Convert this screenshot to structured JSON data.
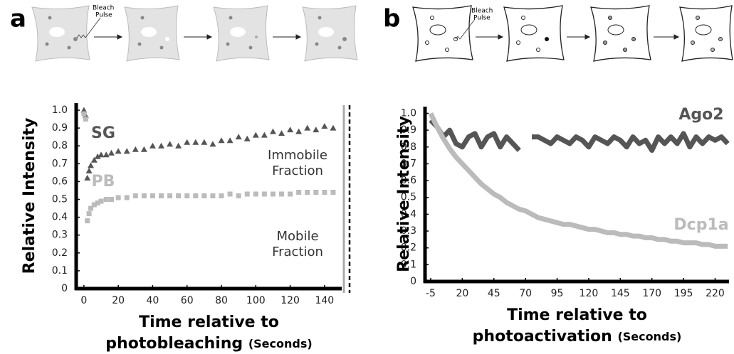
{
  "panel_labels": [
    "a",
    "b"
  ],
  "schematic_labels": [
    [
      "Bleach",
      "Pulse"
    ],
    [
      "Bleach",
      "Pulse"
    ]
  ],
  "chart_data": [
    {
      "type": "scatter",
      "ylabel": "Relative Intensity",
      "xlabel": [
        "Time relative to",
        "photobleaching"
      ],
      "xlabel_unit": "(Seconds)",
      "annotations": [
        [
          "Immobile",
          "Fraction"
        ],
        [
          "Mobile",
          "Fraction"
        ]
      ],
      "xlim": [
        -4.5,
        150
      ],
      "xticks": [
        0,
        20,
        40,
        60,
        80,
        100,
        120,
        140
      ],
      "ylim": [
        0,
        1.04
      ],
      "yticks": [
        0,
        0.1,
        0.2,
        0.3,
        0.4,
        0.5,
        0.6,
        0.7,
        0.8,
        0.9,
        {
          "value": 1,
          "label": "1.0"
        }
      ],
      "x": [
        0,
        1,
        2,
        3,
        4,
        6,
        8,
        10,
        13,
        16,
        20,
        25,
        30,
        35,
        40,
        45,
        50,
        55,
        60,
        65,
        70,
        75,
        80,
        85,
        90,
        95,
        100,
        105,
        110,
        115,
        120,
        125,
        130,
        135,
        140,
        145
      ],
      "series": [
        {
          "name": "SG",
          "color": "#555555",
          "marker": "triangle",
          "values": [
            1.0,
            0.97,
            0.62,
            0.66,
            0.69,
            0.72,
            0.74,
            0.75,
            0.75,
            0.76,
            0.77,
            0.77,
            0.78,
            0.78,
            0.8,
            0.8,
            0.81,
            0.8,
            0.82,
            0.82,
            0.82,
            0.81,
            0.83,
            0.83,
            0.85,
            0.84,
            0.86,
            0.86,
            0.88,
            0.87,
            0.89,
            0.88,
            0.9,
            0.89,
            0.91,
            0.9
          ]
        },
        {
          "name": "PB",
          "color": "#bbbbbb",
          "marker": "square",
          "values": [
            0.98,
            0.95,
            0.38,
            0.42,
            0.45,
            0.47,
            0.48,
            0.49,
            0.5,
            0.5,
            0.51,
            0.51,
            0.52,
            0.52,
            0.52,
            0.52,
            0.52,
            0.52,
            0.52,
            0.52,
            0.52,
            0.52,
            0.52,
            0.53,
            0.52,
            0.53,
            0.53,
            0.53,
            0.53,
            0.53,
            0.53,
            0.54,
            0.54,
            0.54,
            0.54,
            0.54
          ]
        }
      ]
    },
    {
      "type": "line",
      "ylabel": "Relative Intensity",
      "xlabel": [
        "Time relative to",
        "photoactivation"
      ],
      "xlabel_unit": "(Seconds)",
      "xlim": [
        -9.5,
        231
      ],
      "xticks": [
        -5,
        20,
        45,
        70,
        95,
        120,
        145,
        170,
        195,
        220
      ],
      "ylim": [
        0,
        1.04
      ],
      "yticks": [
        0,
        0.1,
        0.2,
        0.3,
        0.4,
        0.5,
        0.6,
        0.7,
        0.8,
        0.9,
        {
          "value": 1,
          "label": "1.0"
        }
      ],
      "x": [
        -5,
        0,
        5,
        10,
        15,
        20,
        25,
        30,
        35,
        40,
        45,
        50,
        55,
        60,
        65,
        70,
        75,
        80,
        85,
        90,
        95,
        100,
        105,
        110,
        115,
        120,
        125,
        130,
        135,
        140,
        145,
        150,
        155,
        160,
        165,
        170,
        175,
        180,
        185,
        190,
        195,
        200,
        205,
        210,
        215,
        220,
        225,
        230
      ],
      "series": [
        {
          "name": "Ago2",
          "color": "#555555",
          "values": [
            0.96,
            0.92,
            0.86,
            0.9,
            0.82,
            0.8,
            0.86,
            0.88,
            0.8,
            0.86,
            0.88,
            0.8,
            0.86,
            0.82,
            0.78,
            null,
            0.86,
            0.86,
            0.84,
            0.82,
            0.86,
            0.84,
            0.82,
            0.86,
            0.84,
            0.8,
            0.86,
            0.84,
            0.82,
            0.86,
            0.84,
            0.8,
            0.86,
            0.82,
            0.84,
            0.78,
            0.86,
            0.82,
            0.86,
            0.82,
            0.88,
            0.8,
            0.86,
            0.82,
            0.86,
            0.84,
            0.86,
            0.82
          ]
        },
        {
          "name": "Dcp1a",
          "color": "#bbbbbb",
          "values": [
            1.0,
            0.92,
            0.85,
            0.79,
            0.74,
            0.7,
            0.66,
            0.62,
            0.58,
            0.55,
            0.52,
            0.5,
            0.47,
            0.45,
            0.43,
            0.42,
            0.4,
            0.38,
            0.37,
            0.36,
            0.35,
            0.34,
            0.34,
            0.33,
            0.32,
            0.31,
            0.31,
            0.3,
            0.29,
            0.29,
            0.28,
            0.28,
            0.27,
            0.27,
            0.26,
            0.26,
            0.25,
            0.25,
            0.24,
            0.24,
            0.23,
            0.23,
            0.23,
            0.22,
            0.22,
            0.21,
            0.21,
            0.21
          ]
        }
      ]
    }
  ]
}
